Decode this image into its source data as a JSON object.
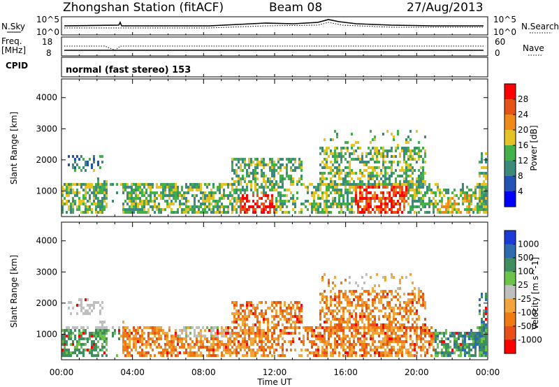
{
  "header": {
    "title": "Zhongshan Station (fitACF)",
    "beam": "Beam 08",
    "date": "27/Aug/2013"
  },
  "top_panel": {
    "left_label": "N.Sky",
    "right_label": "N.Search",
    "left_ticks": [
      "10^5",
      "10^0"
    ],
    "right_ticks": [
      "10^5",
      "10^0"
    ]
  },
  "freq_panel": {
    "left_label_1": "Freq.",
    "left_label_2": "[MHz]",
    "right_label": "Nave",
    "left_ticks": [
      "18",
      "8"
    ],
    "right_ticks": [
      "60",
      "0"
    ]
  },
  "cpid": {
    "label": "CPID",
    "mode_text": "normal (fast stereo) 153"
  },
  "chart_data": [
    {
      "type": "heatmap",
      "quantity": "Power",
      "ylabel": "Slant Range [km]",
      "y_ticks": [
        1000,
        2000,
        3000,
        4000
      ],
      "ylim": [
        180,
        4600
      ],
      "xlim_hours": [
        0,
        24
      ],
      "colorbar": {
        "label": "Power [dB]",
        "ticks": [
          "4",
          "8",
          "12",
          "16",
          "20",
          "24",
          "28"
        ],
        "colors": [
          "#0000ff",
          "#2453b6",
          "#3b8a7a",
          "#43b04a",
          "#e6c229",
          "#ef8a1a",
          "#e55318",
          "#ff0000"
        ]
      }
    },
    {
      "type": "heatmap",
      "quantity": "Velocity",
      "ylabel": "Slant Range [km]",
      "y_ticks": [
        1000,
        2000,
        3000,
        4000
      ],
      "ylim": [
        180,
        4600
      ],
      "xlim_hours": [
        0,
        24
      ],
      "colorbar": {
        "label": "Velocity [m s^-1]",
        "ticks": [
          "1000",
          "500",
          "100",
          "25",
          "-25",
          "-100",
          "-500",
          "-1000"
        ],
        "colors": [
          "#1a3bd6",
          "#2d6ab0",
          "#3f8e5f",
          "#6cc34a",
          "#bfbfbf",
          "#f2a53a",
          "#f07b14",
          "#e8501a",
          "#ff0000"
        ]
      }
    }
  ],
  "x_axis": {
    "tick_labels": [
      "00:00",
      "04:00",
      "08:00",
      "12:00",
      "16:00",
      "20:00",
      "00:00"
    ],
    "label": "Time UT"
  }
}
